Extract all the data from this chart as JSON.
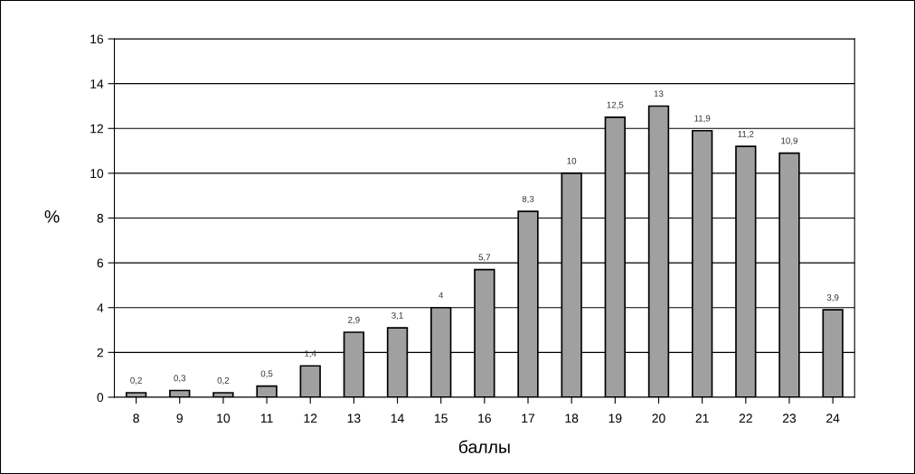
{
  "chart_data": {
    "type": "bar",
    "xlabel": "баллы",
    "ylabel": "%",
    "categories": [
      "8",
      "9",
      "10",
      "11",
      "12",
      "13",
      "14",
      "15",
      "16",
      "17",
      "18",
      "19",
      "20",
      "21",
      "22",
      "23",
      "24"
    ],
    "values": [
      0.2,
      0.3,
      0.2,
      0.5,
      1.4,
      2.9,
      3.1,
      4,
      5.7,
      8.3,
      10,
      12.5,
      13,
      11.9,
      11.2,
      10.9,
      3.9
    ],
    "value_labels": [
      "0,2",
      "0,3",
      "0,2",
      "0,5",
      "1,4",
      "2,9",
      "3,1",
      "4",
      "5,7",
      "8,3",
      "10",
      "12,5",
      "13",
      "11,9",
      "11,2",
      "10,9",
      "3,9"
    ],
    "color": "#a0a0a0",
    "ylim": [
      0,
      16
    ],
    "yticks": [
      0,
      2,
      4,
      6,
      8,
      10,
      12,
      14,
      16
    ],
    "grid": "y",
    "legend": false
  }
}
